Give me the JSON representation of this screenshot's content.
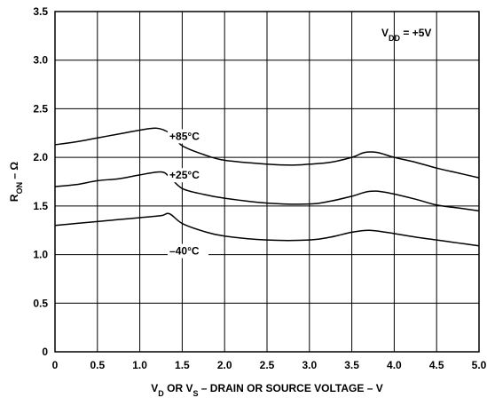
{
  "chart_data": {
    "type": "line",
    "title": "",
    "xlabel": {
      "parts": [
        {
          "text": "V",
          "sub": false
        },
        {
          "text": "D",
          "sub": true
        },
        {
          "text": " OR V",
          "sub": false
        },
        {
          "text": "S",
          "sub": true
        },
        {
          "text": " – DRAIN OR SOURCE VOLTAGE – V",
          "sub": false
        }
      ]
    },
    "ylabel": {
      "parts": [
        {
          "text": "R",
          "sub": false
        },
        {
          "text": "ON",
          "sub": true
        },
        {
          "text": " – Ω",
          "sub": false
        }
      ]
    },
    "xlim": [
      0,
      5.0
    ],
    "ylim": [
      0,
      3.5
    ],
    "x_ticks": [
      "0",
      "0.5",
      "1.0",
      "1.5",
      "2.0",
      "2.5",
      "3.0",
      "3.5",
      "4.0",
      "4.5",
      "5.0"
    ],
    "y_ticks": [
      "0",
      "0.5",
      "1.0",
      "1.5",
      "2.0",
      "2.5",
      "3.0",
      "3.5"
    ],
    "grid": true,
    "annotation": {
      "parts": [
        {
          "text": "V",
          "sub": false
        },
        {
          "text": "DD",
          "sub": true
        },
        {
          "text": " = +5V",
          "sub": false
        }
      ]
    },
    "series": [
      {
        "name": "+85°C",
        "label_at": [
          1.35,
          2.18
        ],
        "points": [
          [
            0,
            2.13
          ],
          [
            0.25,
            2.16
          ],
          [
            0.5,
            2.2
          ],
          [
            0.75,
            2.24
          ],
          [
            1.0,
            2.28
          ],
          [
            1.2,
            2.3
          ],
          [
            1.35,
            2.25
          ],
          [
            1.5,
            2.12
          ],
          [
            1.75,
            2.03
          ],
          [
            2.0,
            1.97
          ],
          [
            2.5,
            1.93
          ],
          [
            2.8,
            1.92
          ],
          [
            3.0,
            1.93
          ],
          [
            3.25,
            1.95
          ],
          [
            3.5,
            2.0
          ],
          [
            3.65,
            2.05
          ],
          [
            3.8,
            2.05
          ],
          [
            4.0,
            2.0
          ],
          [
            4.25,
            1.95
          ],
          [
            4.5,
            1.89
          ],
          [
            4.75,
            1.84
          ],
          [
            5.0,
            1.79
          ]
        ]
      },
      {
        "name": "+25°C",
        "label_at": [
          1.35,
          1.78
        ],
        "points": [
          [
            0,
            1.7
          ],
          [
            0.25,
            1.72
          ],
          [
            0.5,
            1.76
          ],
          [
            0.75,
            1.78
          ],
          [
            1.0,
            1.82
          ],
          [
            1.25,
            1.85
          ],
          [
            1.35,
            1.8
          ],
          [
            1.5,
            1.68
          ],
          [
            1.75,
            1.62
          ],
          [
            2.0,
            1.58
          ],
          [
            2.5,
            1.53
          ],
          [
            3.0,
            1.52
          ],
          [
            3.25,
            1.55
          ],
          [
            3.5,
            1.6
          ],
          [
            3.7,
            1.65
          ],
          [
            3.9,
            1.64
          ],
          [
            4.25,
            1.57
          ],
          [
            4.5,
            1.51
          ],
          [
            4.75,
            1.48
          ],
          [
            5.0,
            1.45
          ]
        ]
      },
      {
        "name": "–40°C",
        "label_at": [
          1.35,
          1.0
        ],
        "points": [
          [
            0,
            1.3
          ],
          [
            0.25,
            1.32
          ],
          [
            0.5,
            1.34
          ],
          [
            0.75,
            1.36
          ],
          [
            1.0,
            1.38
          ],
          [
            1.25,
            1.4
          ],
          [
            1.35,
            1.42
          ],
          [
            1.5,
            1.32
          ],
          [
            1.75,
            1.24
          ],
          [
            2.0,
            1.19
          ],
          [
            2.5,
            1.15
          ],
          [
            3.0,
            1.15
          ],
          [
            3.25,
            1.18
          ],
          [
            3.5,
            1.23
          ],
          [
            3.7,
            1.25
          ],
          [
            3.9,
            1.23
          ],
          [
            4.25,
            1.18
          ],
          [
            4.5,
            1.15
          ],
          [
            4.75,
            1.12
          ],
          [
            5.0,
            1.09
          ]
        ]
      }
    ]
  }
}
